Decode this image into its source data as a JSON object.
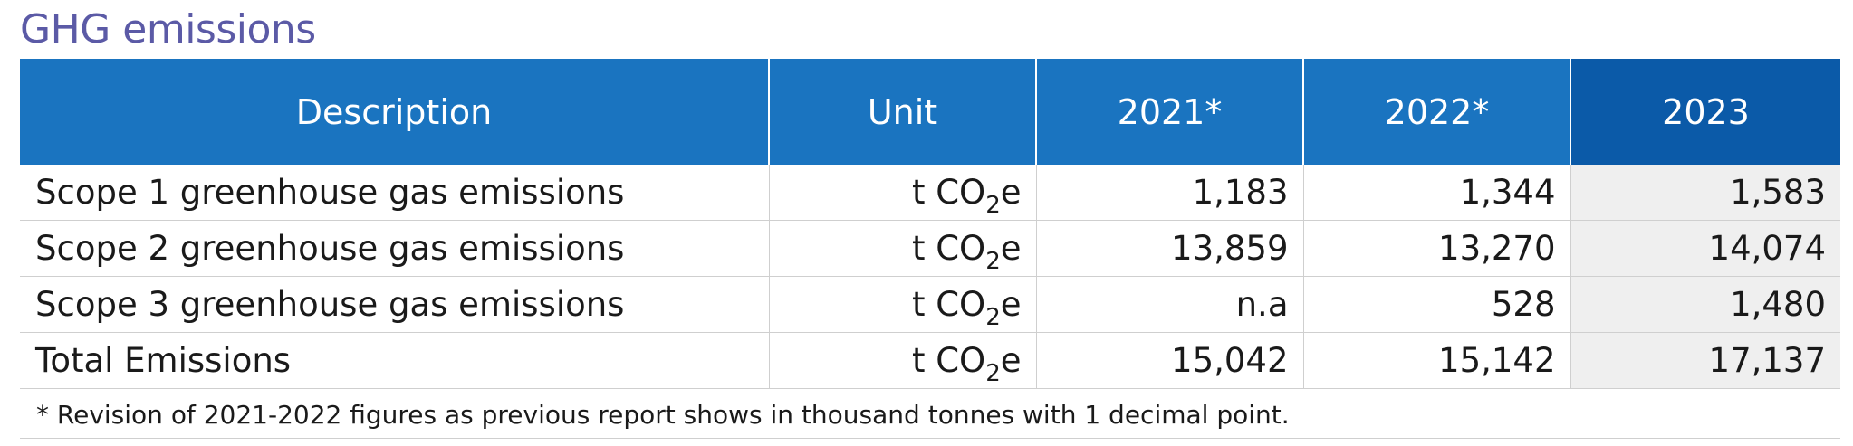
{
  "title": "GHG emissions",
  "table": {
    "headers": {
      "description": "Description",
      "unit": "Unit",
      "years": [
        "2021*",
        "2022*",
        "2023"
      ]
    },
    "rows": [
      {
        "description": "Scope 1 greenhouse gas emissions",
        "unit": {
          "prefix": "t CO",
          "subscript": "2",
          "suffix": "e"
        },
        "values": [
          "1,183",
          "1,344",
          "1,583"
        ]
      },
      {
        "description": "Scope 2 greenhouse gas emissions",
        "unit": {
          "prefix": "t CO",
          "subscript": "2",
          "suffix": "e"
        },
        "values": [
          "13,859",
          "13,270",
          "14,074"
        ]
      },
      {
        "description": "Scope 3 greenhouse gas emissions",
        "unit": {
          "prefix": "t CO",
          "subscript": "2",
          "suffix": "e"
        },
        "values": [
          "n.a",
          "528",
          "1,480"
        ]
      },
      {
        "description": "Total Emissions",
        "unit": {
          "prefix": "t CO",
          "subscript": "2",
          "suffix": "e"
        },
        "values": [
          "15,042",
          "15,142",
          "17,137"
        ]
      }
    ]
  },
  "footnote": "* Revision of 2021-2022 figures as previous report shows in thousand tonnes with 1 decimal point.",
  "colors": {
    "title": "#5b5aa6",
    "header_bg": "#1a74c0",
    "header_current_bg": "#0b5aa8",
    "current_column_bg": "#efefef"
  }
}
